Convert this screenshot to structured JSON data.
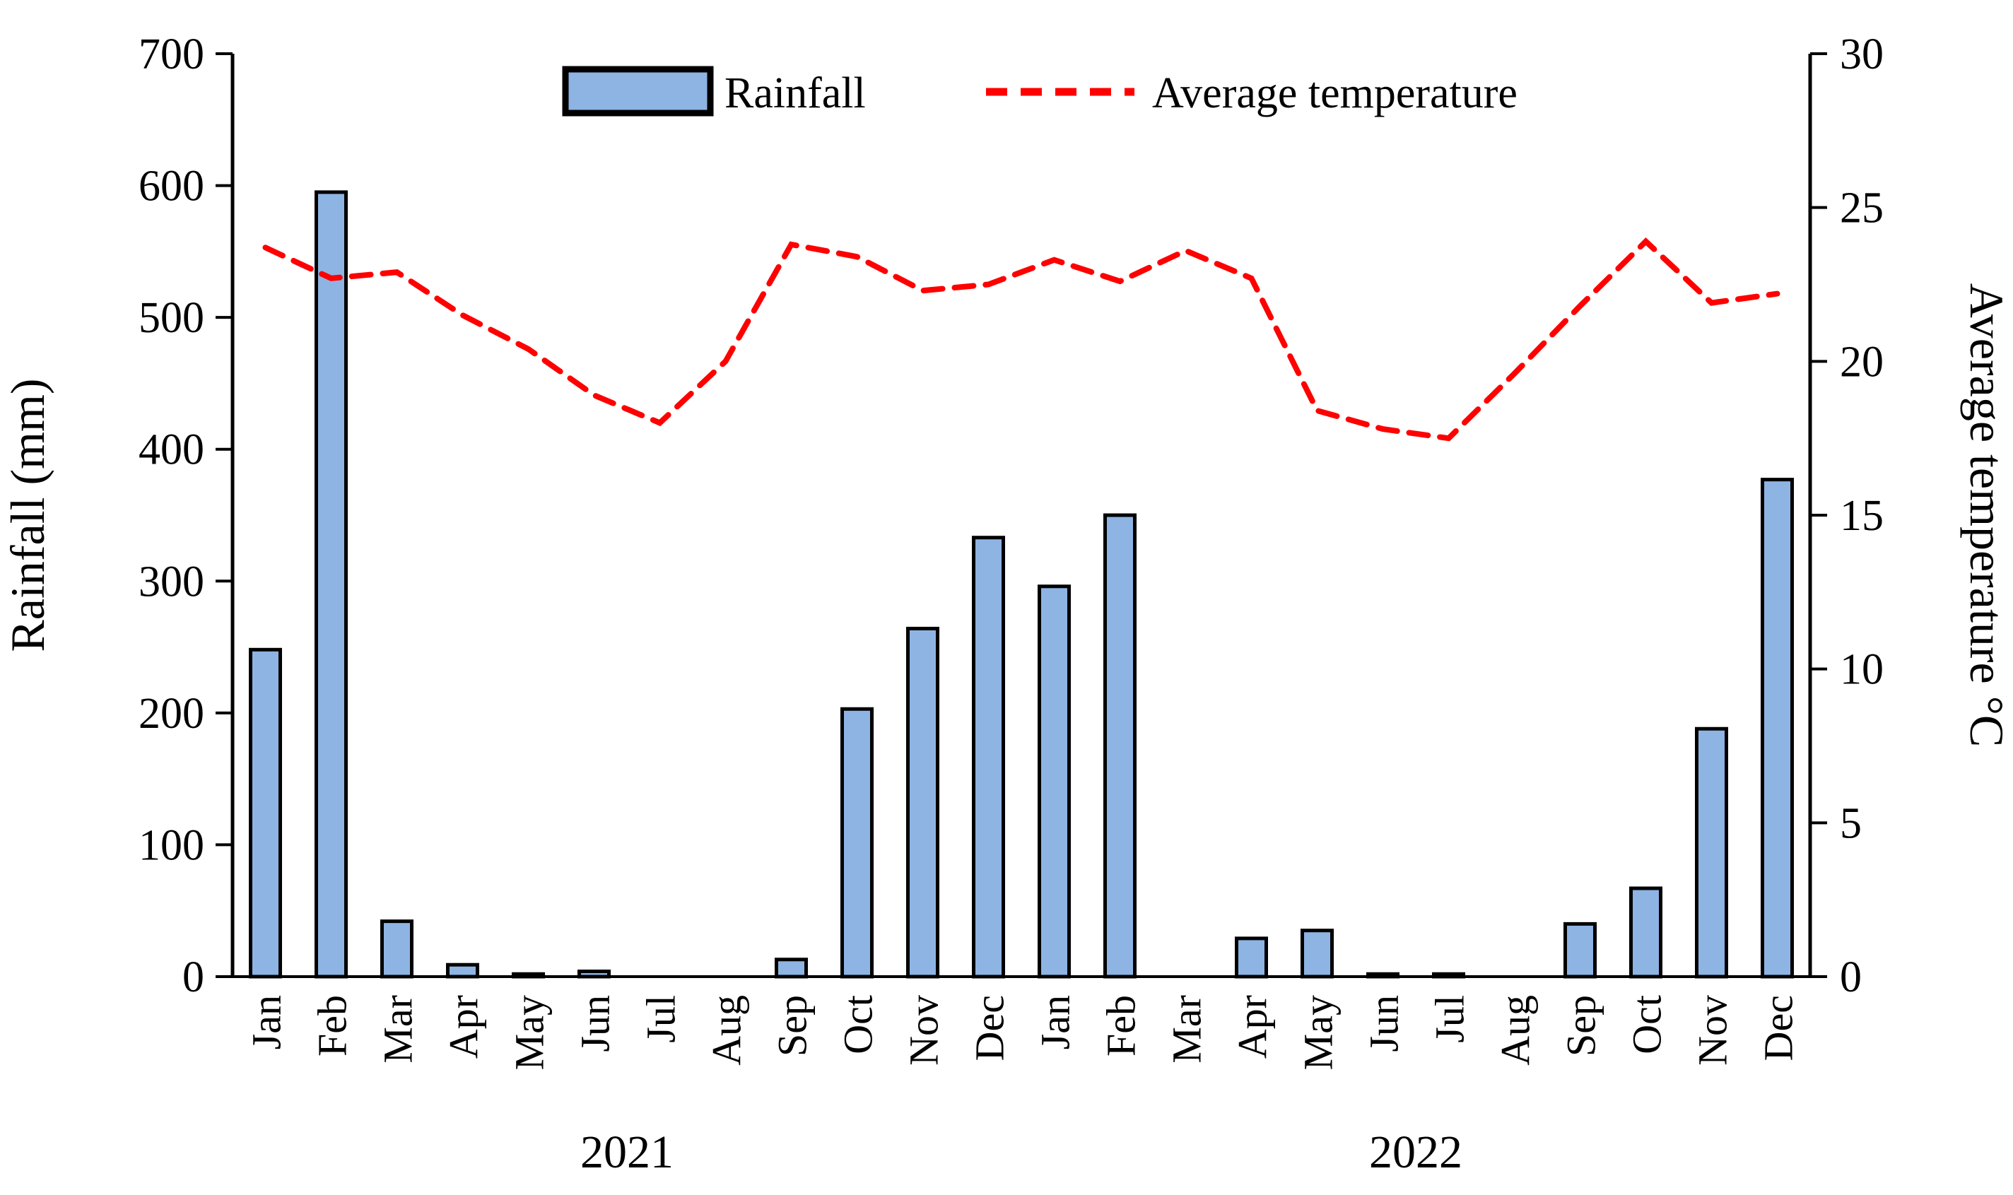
{
  "chart_data": {
    "type": "bar+line combo",
    "categories": [
      "Jan",
      "Feb",
      "Mar",
      "Apr",
      "May",
      "Jun",
      "Jul",
      "Aug",
      "Sep",
      "Oct",
      "Nov",
      "Dec",
      "Jan",
      "Feb",
      "Mar",
      "Apr",
      "May",
      "Jun",
      "Jul",
      "Aug",
      "Sep",
      "Oct",
      "Nov",
      "Dec"
    ],
    "year_groups": [
      {
        "label": "2021",
        "start_index": 0,
        "end_index": 11
      },
      {
        "label": "2022",
        "start_index": 12,
        "end_index": 23
      }
    ],
    "series": [
      {
        "name": "Rainfall",
        "axis": "left",
        "type": "bar",
        "values": [
          248,
          595,
          42,
          9,
          2,
          4,
          0,
          0,
          13,
          203,
          264,
          333,
          296,
          350,
          0,
          29,
          35,
          2,
          2,
          0,
          40,
          67,
          188,
          377
        ]
      },
      {
        "name": "Average temperature",
        "axis": "right",
        "type": "line",
        "values": [
          23.7,
          22.7,
          22.9,
          21.5,
          20.4,
          18.9,
          18.0,
          20.0,
          23.8,
          23.4,
          22.3,
          22.5,
          23.3,
          22.6,
          23.6,
          22.7,
          18.4,
          17.8,
          17.5,
          19.6,
          21.8,
          23.9,
          21.9,
          22.2
        ]
      }
    ],
    "title": "",
    "xlabel": "",
    "ylabel_left": "Rainfall (mm)",
    "ylabel_right": "Average temperature °C",
    "ylim_left": [
      0,
      700
    ],
    "ylim_right": [
      0,
      30
    ],
    "left_ticks": [
      0,
      100,
      200,
      300,
      400,
      500,
      600,
      700
    ],
    "right_ticks": [
      0,
      5,
      10,
      15,
      20,
      25,
      30
    ],
    "grid": false,
    "legend_position": "top-center"
  },
  "legend": {
    "rainfall_label": "Rainfall",
    "temperature_label": "Average temperature"
  },
  "axes": {
    "left_title": "Rainfall (mm)",
    "right_title": "Average temperature °C"
  },
  "colors": {
    "bar_fill": "#8EB4E3",
    "bar_border": "#000000",
    "line_color": "#FF0000",
    "axis_color": "#000000",
    "background": "#FFFFFF"
  }
}
